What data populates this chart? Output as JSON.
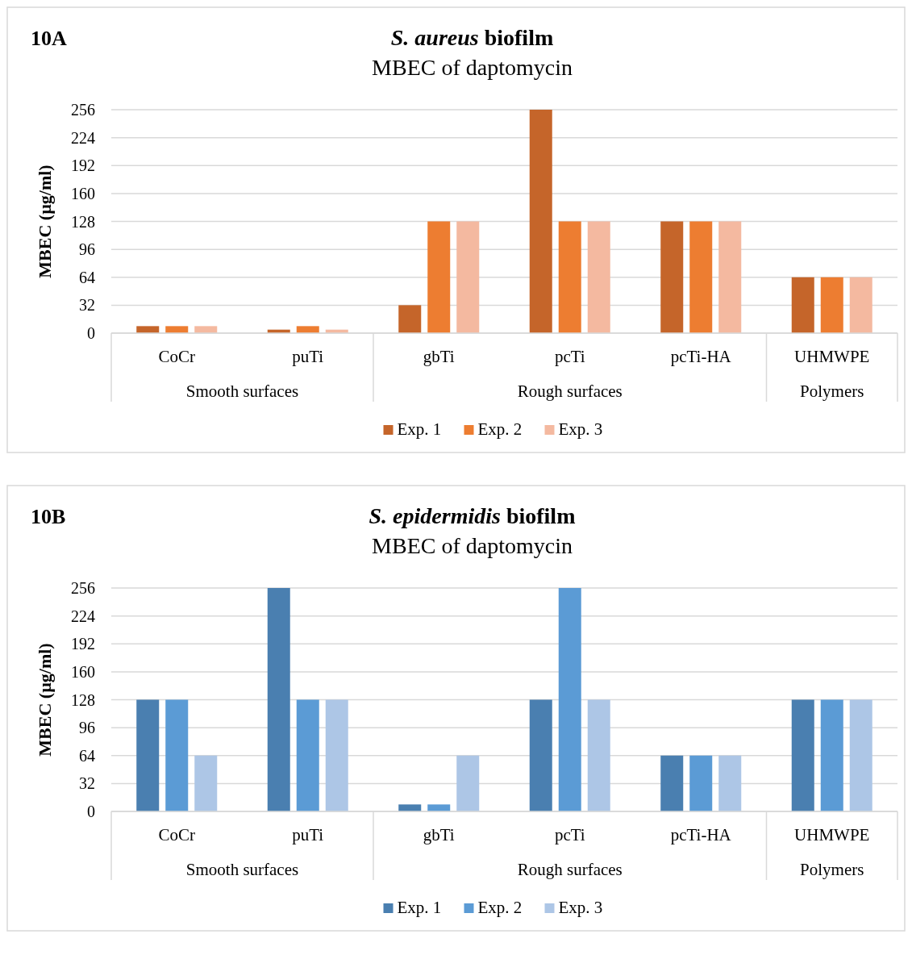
{
  "chart_data": [
    {
      "type": "bar",
      "title": "S. aureus biofilm",
      "subtitle": "MBEC of daptomycin",
      "ylabel": "MBEC (µg/ml)",
      "categories": [
        "CoCr",
        "puTi",
        "gbTi",
        "pcTi",
        "pcTi-HA",
        "UHMWPE"
      ],
      "series": [
        {
          "name": "Exp. 1",
          "color": "#c5652a",
          "values": [
            8,
            4,
            32,
            256,
            128,
            64
          ]
        },
        {
          "name": "Exp. 2",
          "color": "#ed7d31",
          "values": [
            8,
            8,
            128,
            128,
            128,
            64
          ]
        },
        {
          "name": "Exp. 3",
          "color": "#f4b9a0",
          "values": [
            8,
            4,
            128,
            128,
            128,
            64
          ]
        }
      ],
      "ylim": [
        0,
        256
      ],
      "yticks": [
        0,
        32,
        64,
        96,
        128,
        160,
        192,
        224,
        256
      ],
      "grid": "y",
      "legend": "bottom",
      "annotations": [
        "10A",
        "Smooth surfaces",
        "Rough surfaces",
        "Polymers"
      ]
    },
    {
      "type": "bar",
      "title": "S. epidermidis biofilm",
      "subtitle": "MBEC of daptomycin",
      "ylabel": "MBEC (µg/ml)",
      "categories": [
        "CoCr",
        "puTi",
        "gbTi",
        "pcTi",
        "pcTi-HA",
        "UHMWPE"
      ],
      "series": [
        {
          "name": "Exp. 1",
          "color": "#4a7fb0",
          "values": [
            128,
            256,
            8,
            128,
            64,
            128
          ]
        },
        {
          "name": "Exp. 2",
          "color": "#5b9bd5",
          "values": [
            128,
            128,
            8,
            256,
            64,
            128
          ]
        },
        {
          "name": "Exp. 3",
          "color": "#adc6e6",
          "values": [
            64,
            128,
            64,
            128,
            64,
            128
          ]
        }
      ],
      "ylim": [
        0,
        256
      ],
      "yticks": [
        0,
        32,
        64,
        96,
        128,
        160,
        192,
        224,
        256
      ],
      "grid": "y",
      "legend": "bottom",
      "annotations": [
        "10B",
        "Smooth surfaces",
        "Rough surfaces",
        "Polymers"
      ]
    }
  ]
}
